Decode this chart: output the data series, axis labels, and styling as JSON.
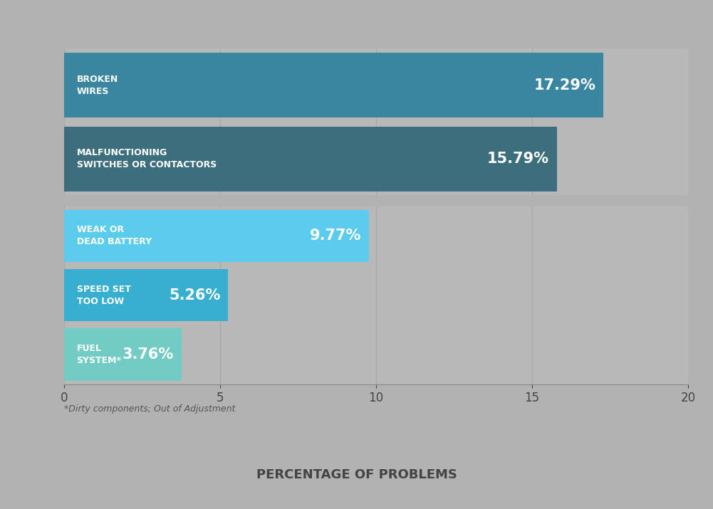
{
  "bars": [
    {
      "label": "BROKEN\nWIRES",
      "value": 17.29,
      "color": "#3a85a0",
      "pct_text": "17.29%"
    },
    {
      "label": "MALFUNCTIONING\nSWITCHES OR CONTACTORS",
      "value": 15.79,
      "color": "#3d6e7e",
      "pct_text": "15.79%"
    },
    {
      "label": "WEAK OR\nDEAD BATTERY",
      "value": 9.77,
      "color": "#5bcbee",
      "pct_text": "9.77%"
    },
    {
      "label": "SPEED SET\nTOO LOW",
      "value": 5.26,
      "color": "#38aed0",
      "pct_text": "5.26%"
    },
    {
      "label": "FUEL\nSYSTEM*",
      "value": 3.76,
      "color": "#72ccc4",
      "pct_text": "3.76%"
    }
  ],
  "xlim": [
    0,
    20
  ],
  "xticks": [
    0,
    5,
    10,
    15,
    20
  ],
  "xlabel": "PERCENTAGE OF PROBLEMS",
  "footnote": "*Dirty components; Out of Adjustment",
  "background_color": "#b2b2b2",
  "bar_bg_color": "#b8b8b8",
  "label_fontsize": 9,
  "pct_fontsize": 15,
  "xlabel_fontsize": 13,
  "footnote_fontsize": 9,
  "tick_fontsize": 12
}
